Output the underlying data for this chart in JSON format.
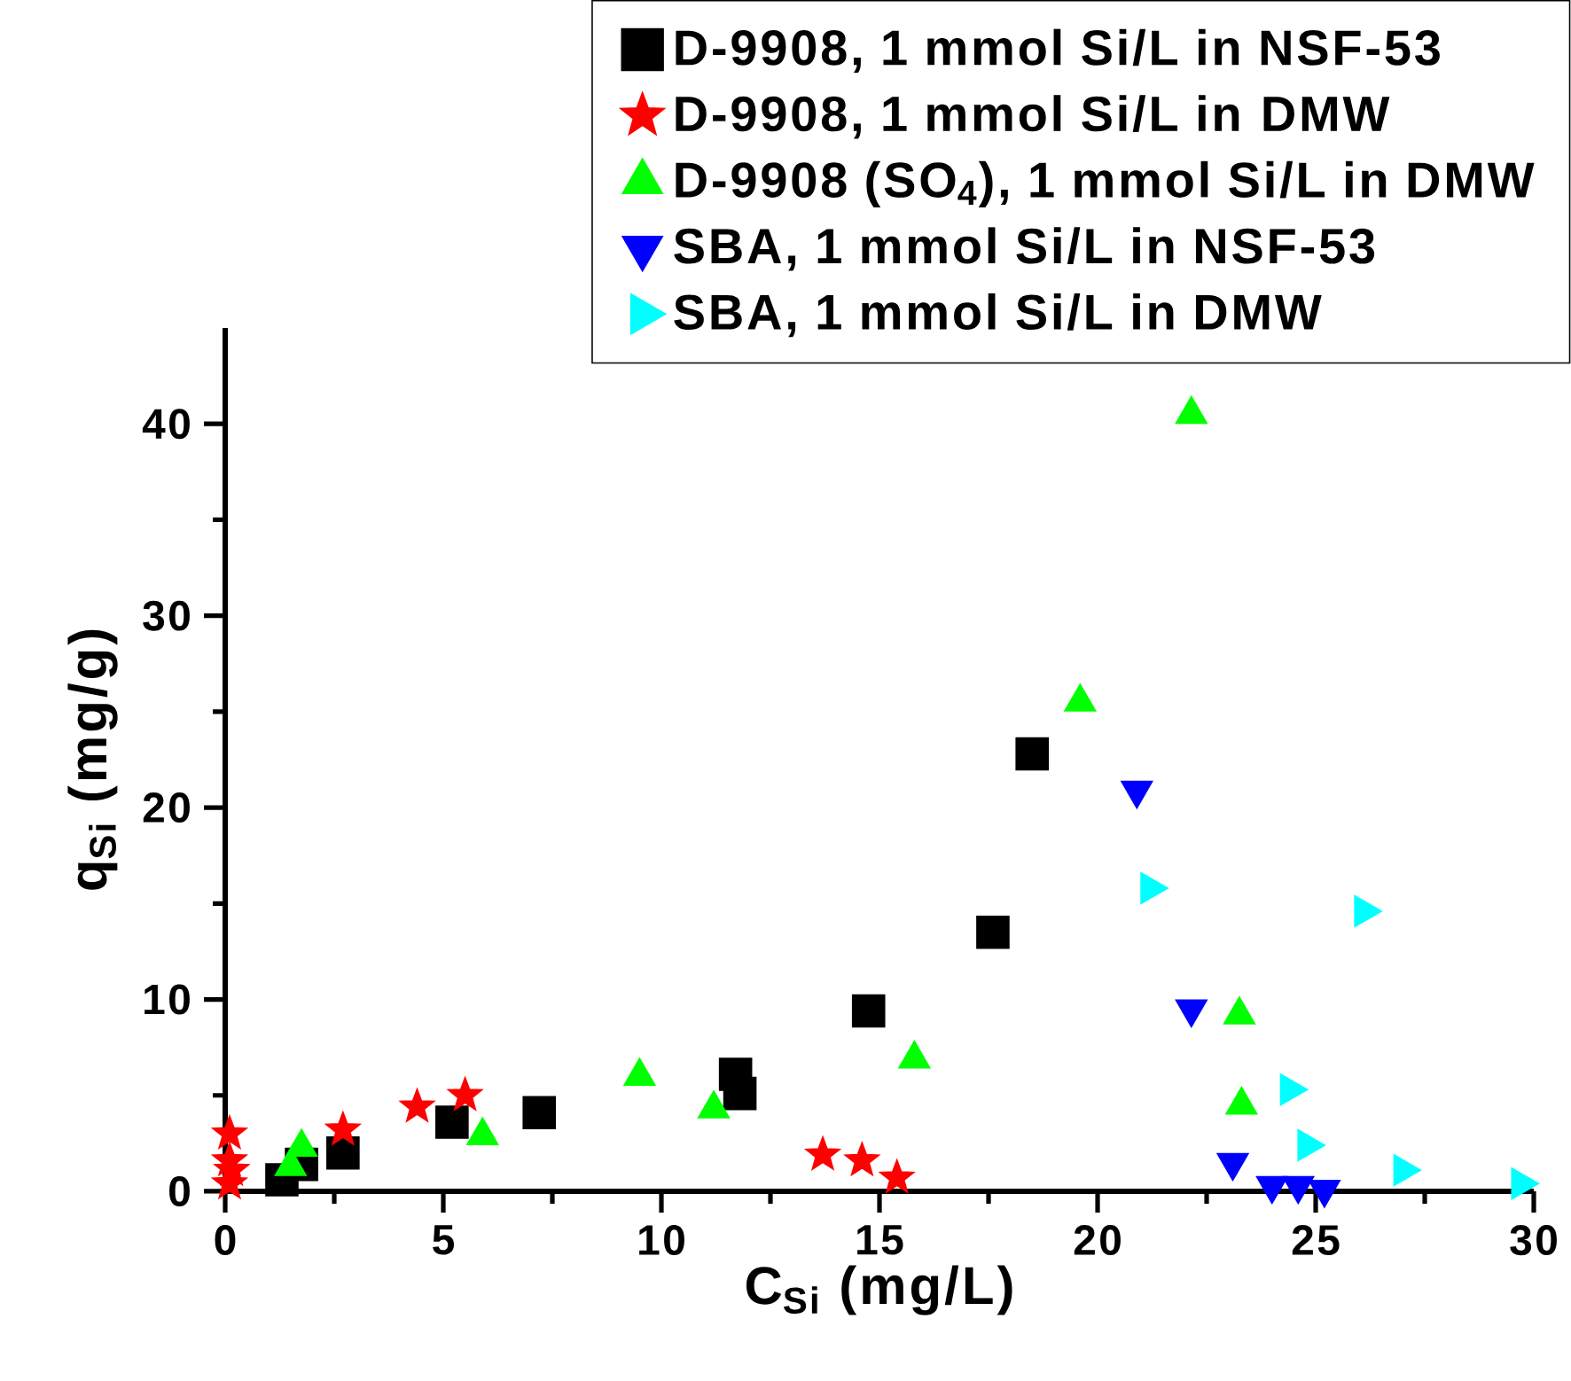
{
  "chart_data": {
    "type": "scatter",
    "xlabel": "C$_{Si}$ (mg/L)",
    "ylabel": "q$_{Si}$ (mg/g)",
    "xlim": [
      0,
      30
    ],
    "ylim": [
      0,
      45
    ],
    "xticks": [
      0,
      5,
      10,
      15,
      20,
      25,
      30
    ],
    "yticks": [
      0,
      10,
      20,
      30,
      40
    ],
    "legend": "top right",
    "grid": false,
    "series": [
      {
        "name": "D-9908, 1 mmol Si/L in NSF-53",
        "color": "#000000",
        "marker": "square",
        "x": [
          1.3,
          1.75,
          2.7,
          5.2,
          7.2,
          11.7,
          11.8,
          14.75,
          17.6,
          18.5
        ],
        "values": [
          0.6,
          1.4,
          2.0,
          3.6,
          4.1,
          6.1,
          5.1,
          9.4,
          13.5,
          22.8
        ]
      },
      {
        "name": "D-9908, 1 mmol Si/L in **DMW**",
        "color": "#ff0000",
        "marker": "star",
        "x": [
          0.1,
          0.1,
          0.15,
          0.1,
          2.7,
          4.4,
          5.5,
          13.7,
          14.6,
          15.4
        ],
        "values": [
          3.0,
          1.6,
          1.1,
          0.4,
          3.2,
          4.4,
          5.0,
          1.9,
          1.6,
          0.7
        ]
      },
      {
        "name": "D-9908 (SO$_{4}$), 1 mmol Si/L in DMW",
        "color": "#00ff00",
        "marker": "triangle",
        "x": [
          1.5,
          1.75,
          5.9,
          9.5,
          11.2,
          15.8,
          19.6,
          22.15,
          23.25,
          23.3
        ],
        "values": [
          1.3,
          2.3,
          2.9,
          6.0,
          4.3,
          6.9,
          25.5,
          40.5,
          9.2,
          4.5
        ]
      },
      {
        "name": "**SBA**, 1 mmol Si/L in NSF-53",
        "color": "#0000ff",
        "marker": "triangle-down",
        "x": [
          20.9,
          22.15,
          23.1,
          24.0,
          24.6,
          25.2
        ],
        "values": [
          20.9,
          9.5,
          1.5,
          0.3,
          0.3,
          0.1
        ]
      },
      {
        "name": "**SBA**, 1 mmol Si/L in DMW",
        "color": "#00ffff",
        "marker": "triangle-right",
        "x": [
          21.2,
          26.1,
          24.4,
          24.8,
          27.0,
          29.7
        ],
        "values": [
          15.8,
          14.6,
          5.3,
          2.4,
          1.1,
          0.4
        ]
      }
    ]
  }
}
